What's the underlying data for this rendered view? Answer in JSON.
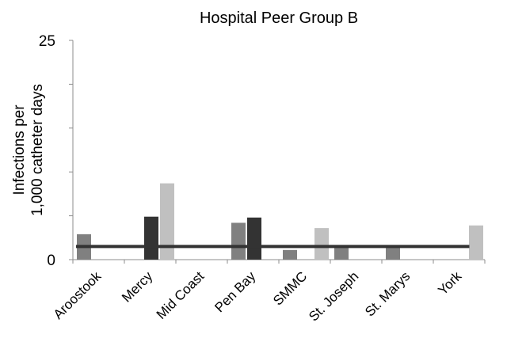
{
  "chart_data": {
    "type": "bar",
    "title": "Hospital Peer Group B",
    "ylabel": "Infections per 1,000 catheter days",
    "ylabel_lines": [
      "Infections per",
      "1,000 catheter days"
    ],
    "xlabel": "",
    "ylim": [
      0,
      25
    ],
    "yticks": [
      0,
      25
    ],
    "grid": false,
    "legend": "none",
    "categories": [
      "Aroostook",
      "Mercy",
      "Mid Coast",
      "Pen Bay",
      "SMMC",
      "St. Joseph",
      "St. Marys",
      "York"
    ],
    "series": [
      {
        "color": "#808080",
        "values": [
          2.9,
          null,
          null,
          4.2,
          1.1,
          1.5,
          1.5,
          null
        ]
      },
      {
        "color": "#333333",
        "values": [
          null,
          4.9,
          null,
          4.8,
          null,
          null,
          null,
          null
        ]
      },
      {
        "color": "#c0c0c0",
        "values": [
          null,
          8.7,
          null,
          null,
          3.6,
          null,
          null,
          3.9
        ]
      }
    ],
    "reference_line": {
      "value": 1.5,
      "color": "#333333"
    }
  }
}
